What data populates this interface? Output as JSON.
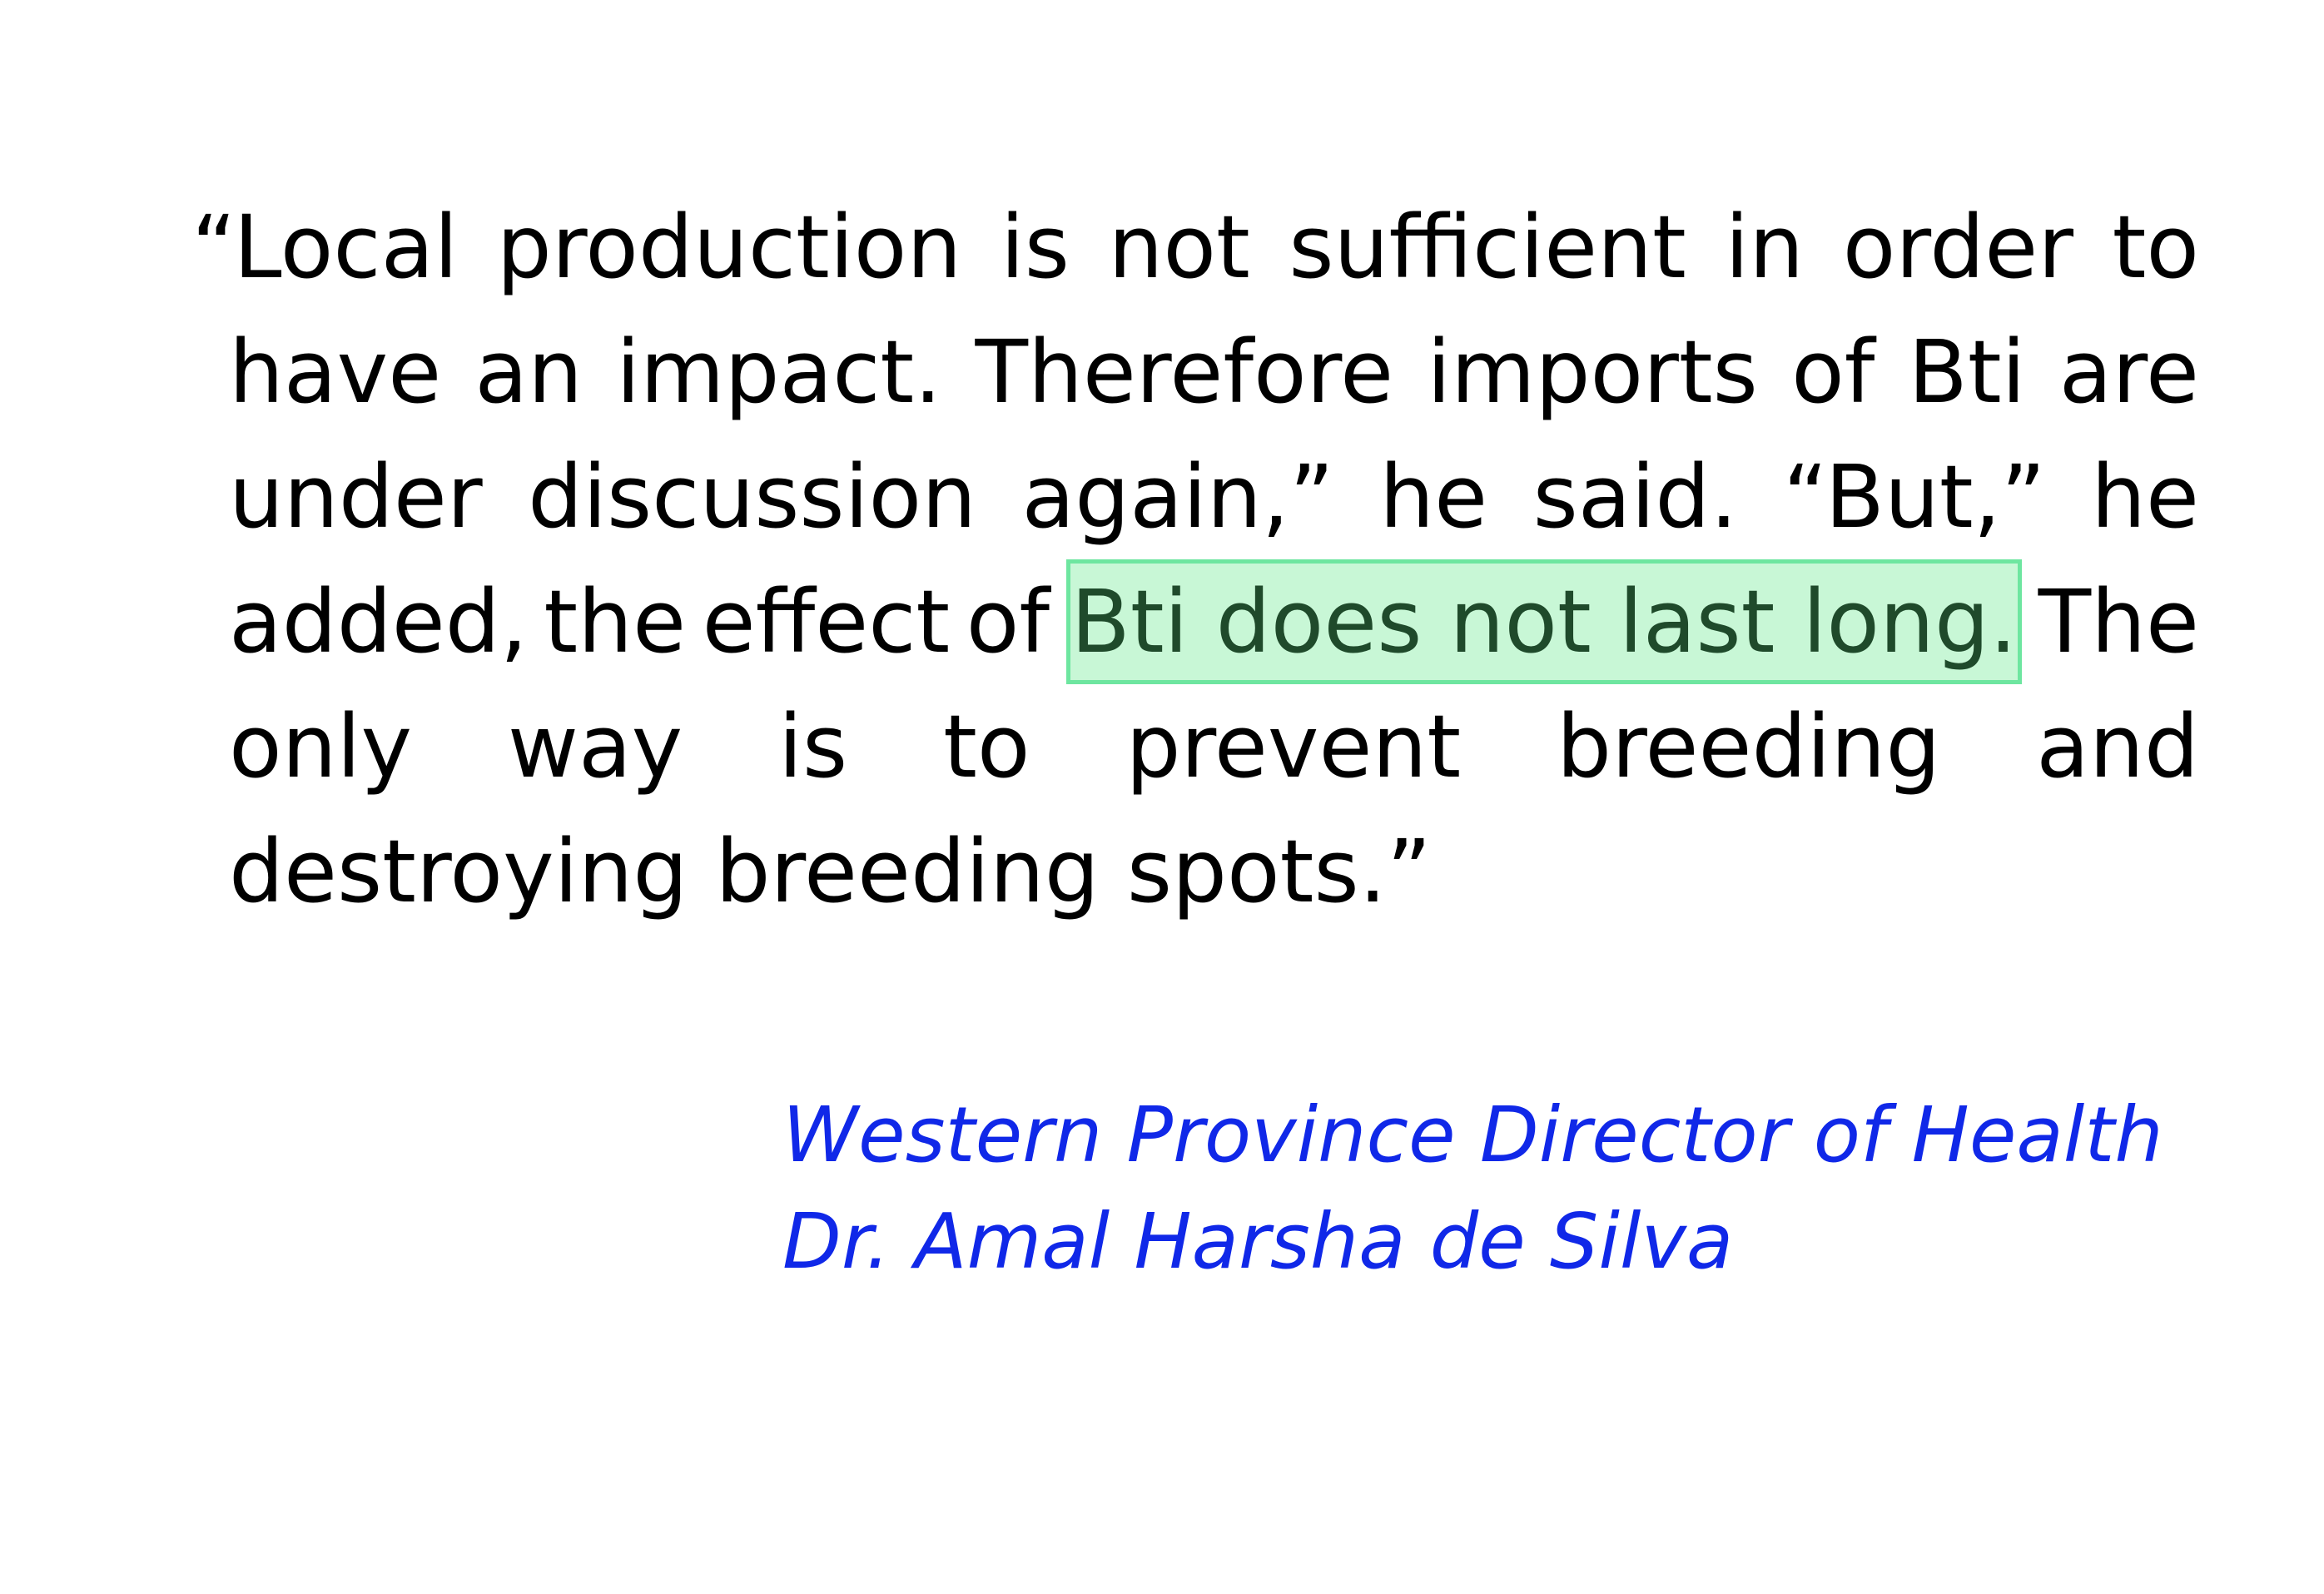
{
  "quote": {
    "lines": [
      [
        "“Local",
        "production",
        "is",
        "not",
        "sufficient",
        "in",
        "order",
        "to"
      ],
      [
        "have",
        "an",
        "impact.",
        "Therefore",
        "imports",
        "of",
        "Bti",
        "are"
      ],
      [
        "under",
        "discussion",
        "again,”",
        "he",
        "said.",
        "“But,”",
        "he"
      ],
      [
        "added,",
        "the",
        "effect",
        "of",
        "The"
      ],
      [
        "only",
        "way",
        "is",
        "to",
        "prevent",
        "breeding",
        "and"
      ],
      [
        "destroying breeding spots.”"
      ]
    ],
    "highlighted_phrase": "Bti does not last long.",
    "highlight_color": "#c8f7d6",
    "highlight_border_color": "#6ee6a0"
  },
  "attribution": {
    "title": "Western Province Director of Health",
    "name": "Dr. Amal Harsha de Silva",
    "color": "#1028e8"
  }
}
